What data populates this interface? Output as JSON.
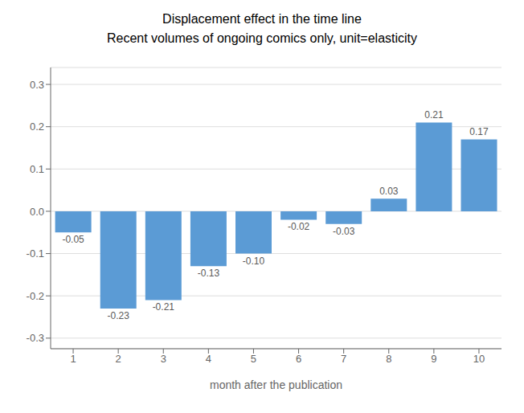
{
  "chart_data": {
    "type": "bar",
    "title": "Displacement effect in the time line",
    "subtitle": "Recent volumes of ongoing comics only, unit=elasticity",
    "xlabel": "month after the publication",
    "categories": [
      1,
      2,
      3,
      4,
      5,
      6,
      7,
      8,
      9,
      10
    ],
    "values": [
      -0.05,
      -0.23,
      -0.21,
      -0.13,
      -0.1,
      -0.02,
      -0.03,
      0.03,
      0.21,
      0.17
    ],
    "value_labels": [
      "-0.05",
      "-0.23",
      "-0.21",
      "-0.13",
      "-0.10",
      "-0.02",
      "-0.03",
      "0.03",
      "0.21",
      "0.17"
    ],
    "data_labels": true,
    "color": "#5B9BD5",
    "ylim": [
      -0.325,
      0.34
    ],
    "yticks": [
      -0.3,
      -0.2,
      -0.1,
      {
        "value": 0,
        "label": "0.0"
      },
      0.1,
      0.2,
      0.3
    ],
    "grid": true
  }
}
